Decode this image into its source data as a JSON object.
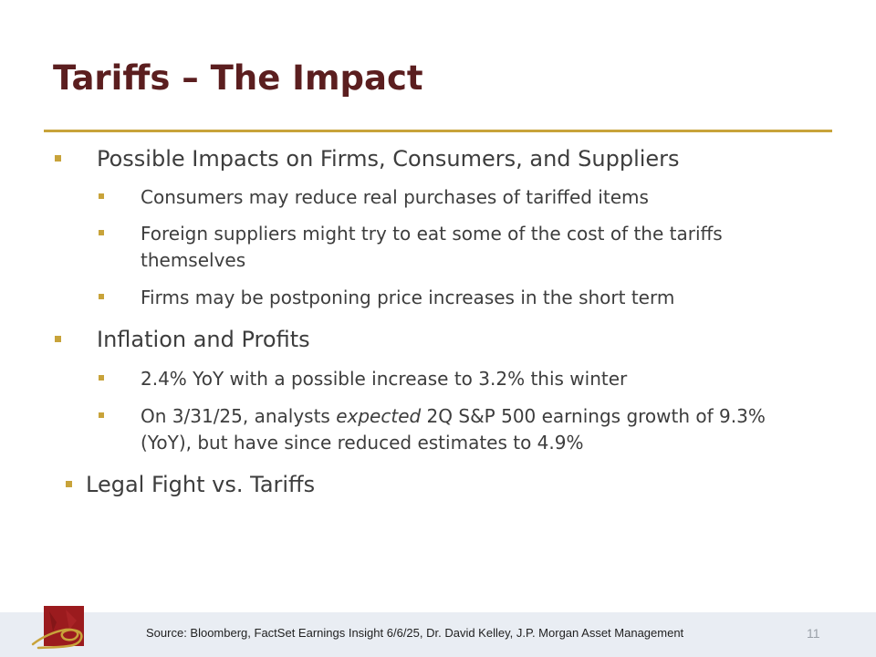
{
  "slide": {
    "title": "Tariffs – The Impact",
    "bullets": [
      {
        "text": "Possible Impacts on Firms, Consumers, and Suppliers",
        "sub": [
          {
            "text": "Consumers may reduce real purchases of tariffed items"
          },
          {
            "line1": "Foreign suppliers might try to eat some of the cost of the tariffs",
            "line2": "themselves"
          },
          {
            "text": "Firms may be postponing price increases in the short term"
          }
        ]
      },
      {
        "text": "Inflation and Profits",
        "sub": [
          {
            "text": "2.4% YoY with a possible increase to 3.2% this winter"
          },
          {
            "line1_pre": "On 3/31/25, analysts ",
            "line1_em": "expected",
            "line1_post": " 2Q S&P 500 earnings growth of 9.3%",
            "line2": "(YoY), but have since reduced estimates to 4.9%"
          }
        ]
      },
      {
        "text": "Legal Fight vs. Tariffs"
      }
    ],
    "source": "Source: Bloomberg, FactSet Earnings Insight 6/6/25, Dr. David Kelley, J.P. Morgan Asset Management",
    "page_number": "11"
  },
  "colors": {
    "title": "#5b1e1f",
    "accent": "#c8a33a",
    "text": "#3d3d3d",
    "footer_bg": "#e9edf3",
    "logo_red": "#9b1b1e"
  },
  "icons": {
    "bullet": "square-bullet-icon",
    "logo": "college-logo-icon"
  }
}
